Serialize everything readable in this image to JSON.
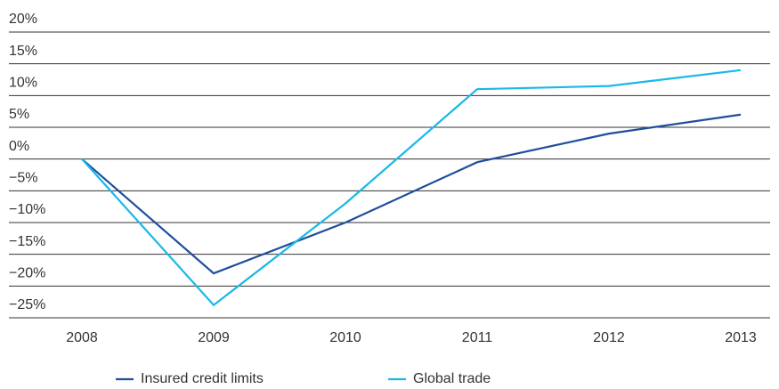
{
  "chart_data": {
    "type": "line",
    "categories": [
      "2008",
      "2009",
      "2010",
      "2011",
      "2012",
      "2013"
    ],
    "series": [
      {
        "name": "Insured credit limits",
        "color": "#1f4e9c",
        "values": [
          0,
          -18,
          -10,
          -0.5,
          4,
          7
        ]
      },
      {
        "name": "Global trade",
        "color": "#1ab8e8",
        "values": [
          0,
          -23,
          -7,
          11,
          11.5,
          14
        ]
      }
    ],
    "ylim": [
      -25,
      20
    ],
    "yticks": [
      {
        "value": -25,
        "label": "−25%"
      },
      {
        "value": -20,
        "label": "−20%"
      },
      {
        "value": -15,
        "label": "−15%"
      },
      {
        "value": -10,
        "label": "−10%"
      },
      {
        "value": -5,
        "label": "−5%"
      },
      {
        "value": 0,
        "label": "0%"
      },
      {
        "value": 5,
        "label": "5%"
      },
      {
        "value": 10,
        "label": "10%"
      },
      {
        "value": 15,
        "label": "15%"
      },
      {
        "value": 20,
        "label": "20%"
      }
    ],
    "grid": true,
    "legend": "bottom"
  }
}
